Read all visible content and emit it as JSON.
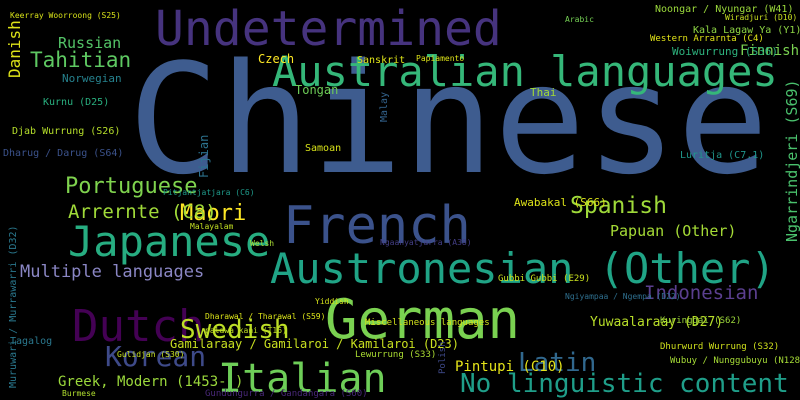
{
  "words": [
    {
      "text": "Chinese",
      "color": "#3e5c8f"
    },
    {
      "text": "Undetermined",
      "color": "#46337e"
    },
    {
      "text": "Australian languages",
      "color": "#35b779"
    },
    {
      "text": "French",
      "color": "#3b528b"
    },
    {
      "text": "Japanese",
      "color": "#27ad81"
    },
    {
      "text": "Austronesian (Other)",
      "color": "#20a486"
    },
    {
      "text": "German",
      "color": "#7ad151"
    },
    {
      "text": "Dutch",
      "color": "#440154"
    },
    {
      "text": "Italian",
      "color": "#6ece58"
    },
    {
      "text": "Korean",
      "color": "#3e4a89"
    },
    {
      "text": "Swedish",
      "color": "#bddf26"
    },
    {
      "text": "Latin",
      "color": "#31688e"
    },
    {
      "text": "No linguistic content",
      "color": "#1f9e89"
    },
    {
      "text": "Spanish",
      "color": "#9fda3a"
    },
    {
      "text": "Portuguese",
      "color": "#7fd34e"
    },
    {
      "text": "Tahitian",
      "color": "#5ec962"
    },
    {
      "text": "Russian",
      "color": "#54c568"
    },
    {
      "text": "Maori",
      "color": "#fde725"
    },
    {
      "text": "Arrernte (C8)",
      "color": "#a0da39"
    },
    {
      "text": "Multiple languages",
      "color": "#8a86c4"
    },
    {
      "text": "Indonesian",
      "color": "#5b3f8f"
    },
    {
      "text": "Papuan (Other)",
      "color": "#a5db36"
    },
    {
      "text": "Finnish",
      "color": "#7ad151"
    },
    {
      "text": "Danish",
      "color": "#dde318"
    },
    {
      "text": "Ngarrindjeri (S69)",
      "color": "#4ac16d"
    },
    {
      "text": "Greek, Modern (1453- )",
      "color": "#9bd93c"
    },
    {
      "text": "Pintupi (C10)",
      "color": "#e5e419"
    },
    {
      "text": "Yuwaalaraay (D27)",
      "color": "#b8de29"
    },
    {
      "text": "Gamilaraay / Gamilaroi / Kamilaroi (D23)",
      "color": "#c8e020"
    },
    {
      "text": "Norwegian",
      "color": "#26828e"
    },
    {
      "text": "Tongan",
      "color": "#6ece58"
    },
    {
      "text": "Samoan",
      "color": "#d8e219"
    },
    {
      "text": "Fijian",
      "color": "#2c728e"
    },
    {
      "text": "Czech",
      "color": "#fde725"
    },
    {
      "text": "Sanskrit",
      "color": "#dde318"
    },
    {
      "text": "Thai",
      "color": "#a2da37"
    },
    {
      "text": "Malay",
      "color": "#33638d"
    },
    {
      "text": "Awabakal (S66)",
      "color": "#dde318"
    },
    {
      "text": "Kala Lagaw Ya (Y1)",
      "color": "#8ed645"
    },
    {
      "text": "Woiwurrung (S36)",
      "color": "#2db27d"
    },
    {
      "text": "Luritja (C7.1)",
      "color": "#1f968b"
    },
    {
      "text": "Tagalog",
      "color": "#2a788e"
    },
    {
      "text": "Kurnu (D25)",
      "color": "#29af7f"
    },
    {
      "text": "Dharug / Darug (S64)",
      "color": "#3b528b"
    },
    {
      "text": "Djab Wurrung (S26)",
      "color": "#b5de2b"
    },
    {
      "text": "Malayalam",
      "color": "#c2df23"
    },
    {
      "text": "Pitjantjatjara (C6)",
      "color": "#1f9a8a"
    },
    {
      "text": "Welsh",
      "color": "#a8db34"
    },
    {
      "text": "Miscellaneous languages",
      "color": "#d2e21b"
    },
    {
      "text": "Lewurrung (S33)",
      "color": "#aadc32"
    },
    {
      "text": "Gulidjan (S30)",
      "color": "#c5e021"
    },
    {
      "text": "Dhurwurd Wurrung (S32)",
      "color": "#d0e11c"
    },
    {
      "text": "Wubuy / Nunggubuyu (N128)",
      "color": "#a5db36"
    },
    {
      "text": "Kuringgai (S62)",
      "color": "#9dd93b"
    },
    {
      "text": "Noongar / Nyungar (W41)",
      "color": "#9bd93c"
    },
    {
      "text": "Wiradjuri (D10)",
      "color": "#c8e020"
    },
    {
      "text": "Western Arrarnta (C4)",
      "color": "#e2e418"
    },
    {
      "text": "Gubbi Gubbi (E29)",
      "color": "#cae11f"
    },
    {
      "text": "Ngiyampaa / Ngempa (D22)",
      "color": "#2e6f8e"
    },
    {
      "text": "Yiddish",
      "color": "#d5e21a"
    },
    {
      "text": "Muruwari / Murrawarri (D32)",
      "color": "#2a788e"
    },
    {
      "text": "Burmese",
      "color": "#b0dd2f"
    },
    {
      "text": "Dharawal / Tharawal (S59)",
      "color": "#dae319"
    },
    {
      "text": "palawa kani (T16)",
      "color": "#c0df25"
    },
    {
      "text": "Gundungurra / Gandangara (S60)",
      "color": "#482878"
    },
    {
      "text": "Polish",
      "color": "#3e4989"
    },
    {
      "text": "Keerray Woorroong (S25)",
      "color": "#d8e219"
    },
    {
      "text": "Papiamento",
      "color": "#dde318"
    },
    {
      "text": "Arabic",
      "color": "#75d054"
    },
    {
      "text": "Ngaanyatjarra (A38)",
      "color": "#433e85"
    }
  ]
}
